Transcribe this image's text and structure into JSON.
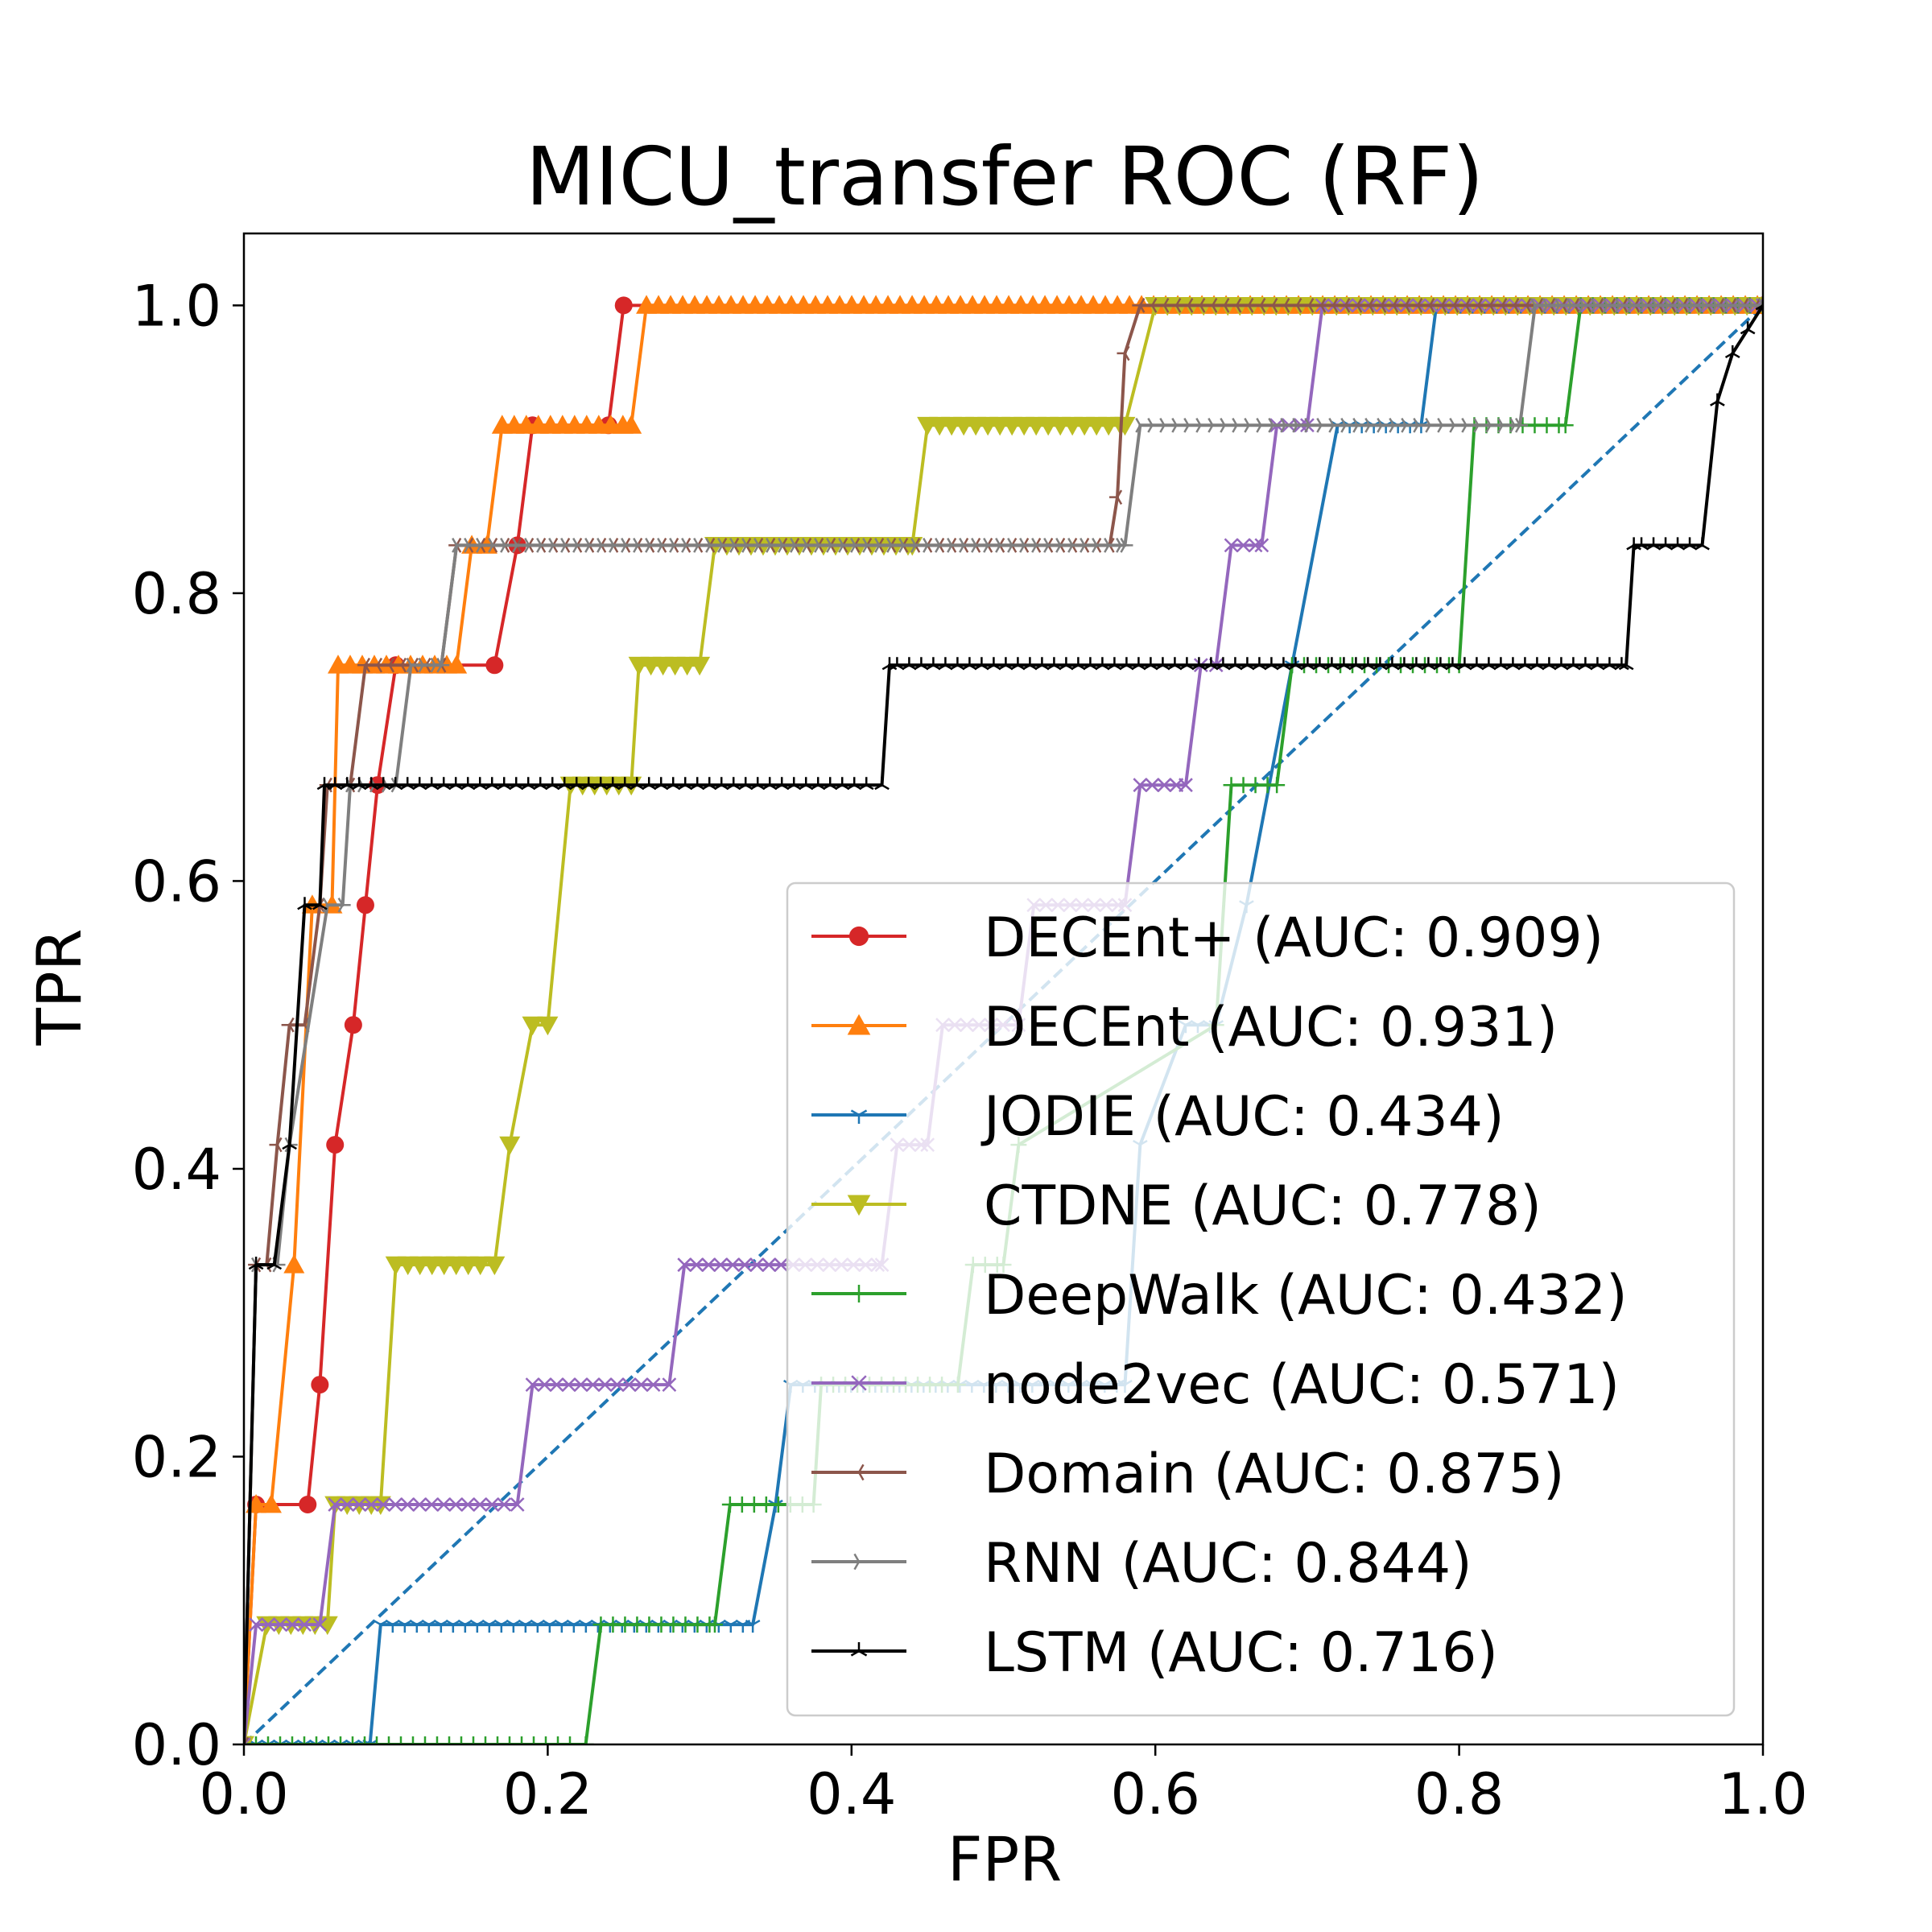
{
  "chart_data": {
    "type": "line",
    "title": "MICU_transfer ROC (RF)",
    "xlabel": "FPR",
    "ylabel": "TPR",
    "xlim": [
      0.0,
      1.0
    ],
    "ylim": [
      0.0,
      1.05
    ],
    "xticks": [
      "0.0",
      "0.2",
      "0.4",
      "0.6",
      "0.8",
      "1.0"
    ],
    "yticks": [
      "0.0",
      "0.2",
      "0.4",
      "0.6",
      "0.8",
      "1.0"
    ],
    "grid": false,
    "legend_position": "lower-right",
    "series": [
      {
        "name": "DECEnt+ (AUC: 0.909)",
        "color": "#d62728",
        "marker": "circle",
        "x": [
          0,
          0.008,
          0.042,
          0.05,
          0.06,
          0.072,
          0.08,
          0.088,
          0.1,
          0.165,
          0.18,
          0.19,
          0.24,
          0.25,
          1.0
        ],
        "y": [
          0,
          0.1667,
          0.1667,
          0.25,
          0.4167,
          0.5,
          0.5833,
          0.6667,
          0.75,
          0.75,
          0.8333,
          0.9167,
          0.9167,
          1.0,
          1.0
        ]
      },
      {
        "name": "DECEnt (AUC: 0.931)",
        "color": "#ff7f0e",
        "marker": "triangle-up",
        "x": [
          0,
          0.008,
          0.018,
          0.033,
          0.045,
          0.058,
          0.062,
          0.14,
          0.15,
          0.16,
          0.17,
          0.255,
          0.265,
          1.0
        ],
        "y": [
          0,
          0.1667,
          0.1667,
          0.3333,
          0.5833,
          0.5833,
          0.75,
          0.75,
          0.8333,
          0.8333,
          0.9167,
          0.9167,
          1.0,
          1.0
        ]
      },
      {
        "name": "JODIE (AUC: 0.434)",
        "color": "#1f77b4",
        "marker": "tri",
        "x": [
          0,
          0.083,
          0.09,
          0.335,
          0.35,
          0.36,
          0.58,
          0.59,
          0.62,
          0.64,
          0.66,
          0.69,
          0.72,
          0.775,
          0.785,
          1.0
        ],
        "y": [
          0,
          0,
          0.0833,
          0.0833,
          0.1667,
          0.25,
          0.25,
          0.4167,
          0.5,
          0.5,
          0.5833,
          0.75,
          0.9167,
          0.9167,
          1.0,
          1.0
        ]
      },
      {
        "name": "CTDNE (AUC: 0.778)",
        "color": "#bcbd22",
        "marker": "triangle-down",
        "x": [
          0,
          0.015,
          0.055,
          0.06,
          0.09,
          0.1,
          0.165,
          0.175,
          0.19,
          0.2,
          0.215,
          0.255,
          0.26,
          0.3,
          0.31,
          0.44,
          0.45,
          0.58,
          0.6,
          1.0
        ],
        "y": [
          0,
          0.0833,
          0.0833,
          0.1667,
          0.1667,
          0.3333,
          0.3333,
          0.4167,
          0.5,
          0.5,
          0.6667,
          0.6667,
          0.75,
          0.75,
          0.8333,
          0.8333,
          0.9167,
          0.9167,
          1.0,
          1.0
        ]
      },
      {
        "name": "DeepWalk (AUC: 0.432)",
        "color": "#2ca02c",
        "marker": "plus",
        "x": [
          0,
          0.225,
          0.235,
          0.31,
          0.32,
          0.375,
          0.38,
          0.47,
          0.48,
          0.5,
          0.51,
          0.64,
          0.65,
          0.68,
          0.69,
          0.8,
          0.81,
          0.87,
          0.88,
          1.0
        ],
        "y": [
          0,
          0,
          0.0833,
          0.0833,
          0.1667,
          0.1667,
          0.25,
          0.25,
          0.3333,
          0.3333,
          0.4167,
          0.5,
          0.6667,
          0.6667,
          0.75,
          0.75,
          0.9167,
          0.9167,
          1.0,
          1.0
        ]
      },
      {
        "name": "node2vec (AUC: 0.571)",
        "color": "#9467bd",
        "marker": "x",
        "x": [
          0,
          0.008,
          0.05,
          0.06,
          0.18,
          0.19,
          0.28,
          0.29,
          0.42,
          0.43,
          0.45,
          0.46,
          0.51,
          0.52,
          0.58,
          0.59,
          0.62,
          0.63,
          0.64,
          0.65,
          0.67,
          0.68,
          0.7,
          0.71,
          1.0
        ],
        "y": [
          0,
          0.0833,
          0.0833,
          0.1667,
          0.1667,
          0.25,
          0.25,
          0.3333,
          0.3333,
          0.4167,
          0.4167,
          0.5,
          0.5,
          0.5833,
          0.5833,
          0.6667,
          0.6667,
          0.75,
          0.75,
          0.8333,
          0.8333,
          0.9167,
          0.9167,
          1.0,
          1.0
        ]
      },
      {
        "name": "Domain (AUC: 0.875)",
        "color": "#8c564b",
        "marker": "tri-left",
        "x": [
          0,
          0.008,
          0.015,
          0.022,
          0.03,
          0.04,
          0.05,
          0.055,
          0.07,
          0.08,
          0.12,
          0.13,
          0.14,
          0.57,
          0.575,
          0.58,
          0.59,
          1.0
        ],
        "y": [
          0,
          0.3333,
          0.3333,
          0.4167,
          0.5,
          0.5,
          0.5833,
          0.6667,
          0.6667,
          0.75,
          0.75,
          0.75,
          0.8333,
          0.8333,
          0.8667,
          0.9667,
          1.0,
          1.0
        ]
      },
      {
        "name": "RNN (AUC: 0.844)",
        "color": "#7f7f7f",
        "marker": "tri-right",
        "x": [
          0,
          0.008,
          0.022,
          0.03,
          0.055,
          0.065,
          0.07,
          0.1,
          0.11,
          0.13,
          0.14,
          0.58,
          0.59,
          0.84,
          0.85,
          1.0
        ],
        "y": [
          0,
          0.3333,
          0.3333,
          0.4167,
          0.5833,
          0.5833,
          0.6667,
          0.6667,
          0.75,
          0.75,
          0.8333,
          0.8333,
          0.9167,
          0.9167,
          1.0,
          1.0
        ]
      },
      {
        "name": "LSTM (AUC: 0.716)",
        "color": "#000000",
        "marker": "tri-up",
        "x": [
          0,
          0.008,
          0.02,
          0.03,
          0.04,
          0.05,
          0.053,
          0.06,
          0.42,
          0.425,
          0.43,
          0.91,
          0.915,
          0.92,
          0.96,
          0.97,
          0.98,
          0.99,
          1.0
        ],
        "y": [
          0,
          0.3333,
          0.3333,
          0.4167,
          0.5833,
          0.5833,
          0.6667,
          0.6667,
          0.6667,
          0.75,
          0.75,
          0.75,
          0.8333,
          0.8333,
          0.8333,
          0.9333,
          0.9667,
          0.9833,
          1.0
        ]
      }
    ],
    "reference_line": {
      "x": [
        0,
        1
      ],
      "y": [
        0,
        1
      ],
      "color": "#1f77b4",
      "style": "dashed"
    }
  }
}
